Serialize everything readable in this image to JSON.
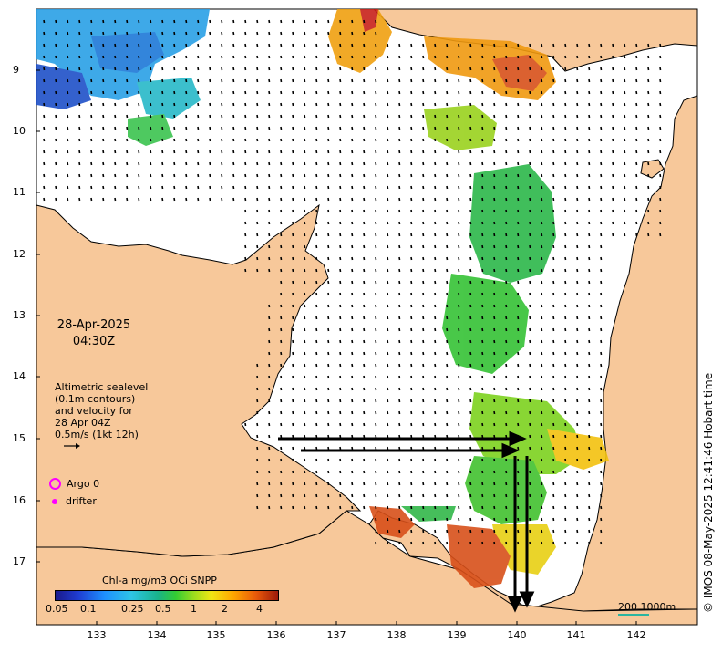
{
  "map": {
    "date": "28-Apr-2025",
    "time": "04:30Z",
    "altimetry_lines": [
      "Altimetric sealevel",
      "(0.1m contours)",
      "and velocity for",
      "28 Apr 04Z",
      "0.5m/s (1kt 12h)"
    ],
    "argo_label": "Argo 0",
    "drifter_label": "drifter",
    "colorbar_title": "Chl-a mg/m3 OCi SNPP",
    "colorbar_ticks": [
      "0.05",
      "0.1",
      "0.25",
      "0.5",
      "1",
      "2",
      "4"
    ],
    "scale_label": "200  1000m",
    "credit": "© IMOS 08-May-2025 12:41:46 Hobart time",
    "x_ticks": [
      "133",
      "134",
      "135",
      "136",
      "137",
      "138",
      "139",
      "140",
      "141",
      "142"
    ],
    "y_ticks": [
      "9",
      "10",
      "11",
      "12",
      "13",
      "14",
      "15",
      "16",
      "17"
    ],
    "colors": {
      "land": "#f7c89a",
      "coast": "#000000",
      "arrow": "#000000",
      "argo": "#ff00ff"
    }
  }
}
